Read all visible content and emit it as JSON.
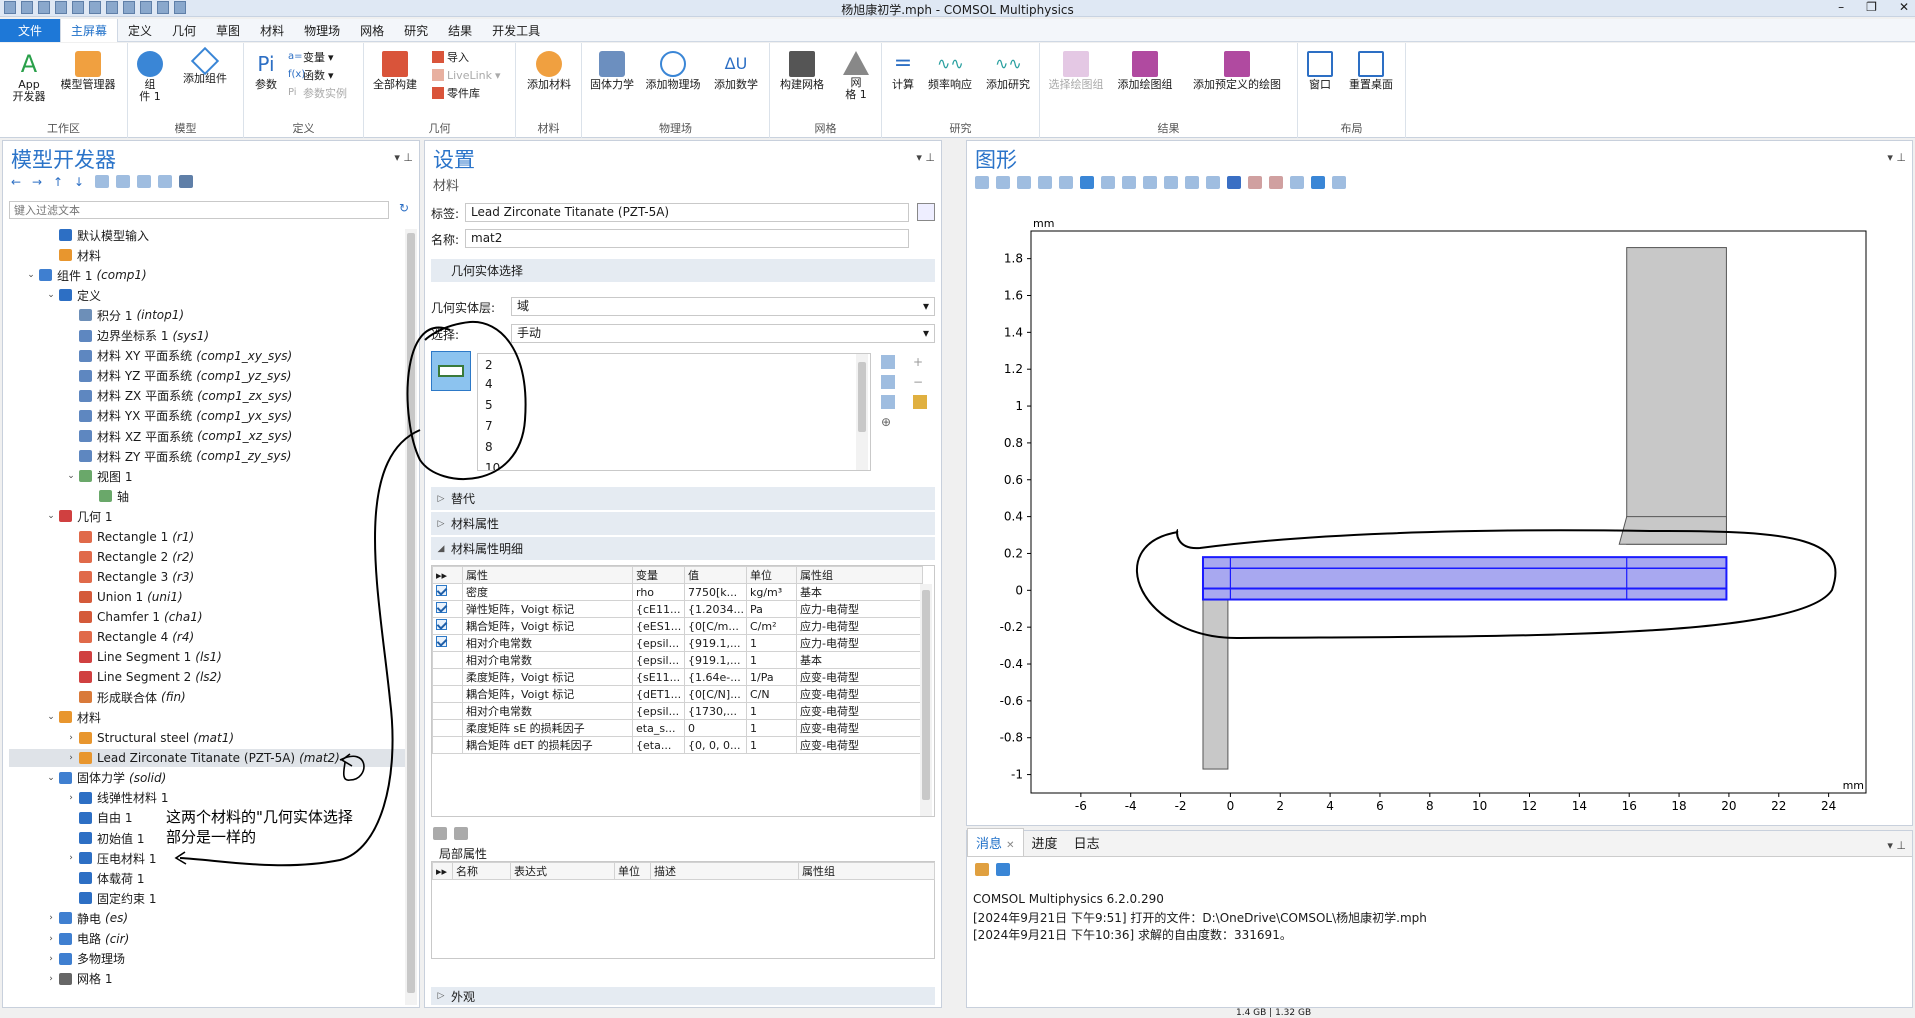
{
  "window": {
    "title": "杨旭康初学.mph - COMSOL Multiphysics"
  },
  "tabs": [
    "文件",
    "主屏幕",
    "定义",
    "几何",
    "草图",
    "材料",
    "物理场",
    "网格",
    "研究",
    "结果",
    "开发工具"
  ],
  "ribbon": {
    "workarea": {
      "label": "工作区",
      "app_line1": "App",
      "app_line2": "开发器",
      "model_mgr": "模型管理器"
    },
    "model": {
      "label": "模型",
      "comp_line1": "组",
      "comp_line2": "件 1",
      "add_comp": "添加组件"
    },
    "defs": {
      "label": "定义",
      "params": "参数",
      "vars": "变量",
      "funcs": "函数",
      "param_inst": "参数实例"
    },
    "geom": {
      "label": "几何",
      "build_all": "全部构建",
      "import": "导入",
      "livelink": "LiveLink",
      "parts": "零件库"
    },
    "mat": {
      "label": "材料",
      "add_mat": "添加材料"
    },
    "phys": {
      "label": "物理场",
      "solid": "固体力学",
      "add_phys": "添加物理场",
      "add_math": "添加数学"
    },
    "mesh": {
      "label": "网格",
      "build_mesh": "构建网格",
      "mesh1_line1": "网",
      "mesh1_line2": "格 1"
    },
    "study": {
      "label": "研究",
      "compute": "计算",
      "freq": "频率响应",
      "add_study": "添加研究"
    },
    "results": {
      "label": "结果",
      "select_plot": "选择绘图组",
      "add_plot": "添加绘图组",
      "add_predef": "添加预定义的绘图"
    },
    "layout": {
      "label": "布局",
      "window": "窗口",
      "reset": "重置桌面"
    }
  },
  "model_builder": {
    "title": "模型开发器",
    "filter_placeholder": "键入过滤文本",
    "nodes": [
      {
        "label": "默认模型输入",
        "tag": "",
        "arrow": "",
        "color": "#2d6fc4"
      },
      {
        "label": "材料",
        "tag": "",
        "arrow": "",
        "color": "#e8962e"
      },
      {
        "label": "组件 1",
        "tag": "(comp1)",
        "arrow": "⌄",
        "color": "#3f7fd0"
      },
      {
        "label": "定义",
        "tag": "",
        "arrow": "⌄",
        "color": "#2d6fc4"
      },
      {
        "label": "积分 1",
        "tag": "(intop1)",
        "arrow": "",
        "color": "#6d8fb8"
      },
      {
        "label": "边界坐标系 1",
        "tag": "(sys1)",
        "arrow": "",
        "color": "#5e87c0"
      },
      {
        "label": "材料 XY 平面系统",
        "tag": "(comp1_xy_sys)",
        "arrow": "",
        "color": "#5e87c0"
      },
      {
        "label": "材料 YZ 平面系统",
        "tag": "(comp1_yz_sys)",
        "arrow": "",
        "color": "#5e87c0"
      },
      {
        "label": "材料 ZX 平面系统",
        "tag": "(comp1_zx_sys)",
        "arrow": "",
        "color": "#5e87c0"
      },
      {
        "label": "材料 YX 平面系统",
        "tag": "(comp1_yx_sys)",
        "arrow": "",
        "color": "#5e87c0"
      },
      {
        "label": "材料 XZ 平面系统",
        "tag": "(comp1_xz_sys)",
        "arrow": "",
        "color": "#5e87c0"
      },
      {
        "label": "材料 ZY 平面系统",
        "tag": "(comp1_zy_sys)",
        "arrow": "",
        "color": "#5e87c0"
      },
      {
        "label": "视图 1",
        "tag": "",
        "arrow": "⌄",
        "color": "#6aa86a"
      },
      {
        "label": "轴",
        "tag": "",
        "arrow": "",
        "color": "#6aa86a"
      },
      {
        "label": "几何 1",
        "tag": "",
        "arrow": "⌄",
        "color": "#d04040"
      },
      {
        "label": "Rectangle 1",
        "tag": "(r1)",
        "arrow": "",
        "color": "#e06a4a"
      },
      {
        "label": "Rectangle 2",
        "tag": "(r2)",
        "arrow": "",
        "color": "#e06a4a"
      },
      {
        "label": "Rectangle 3",
        "tag": "(r3)",
        "arrow": "",
        "color": "#e06a4a"
      },
      {
        "label": "Union 1",
        "tag": "(uni1)",
        "arrow": "",
        "color": "#d45a3a"
      },
      {
        "label": "Chamfer 1",
        "tag": "(cha1)",
        "arrow": "",
        "color": "#d45a3a"
      },
      {
        "label": "Rectangle 4",
        "tag": "(r4)",
        "arrow": "",
        "color": "#e06a4a"
      },
      {
        "label": "Line Segment 1",
        "tag": "(ls1)",
        "arrow": "",
        "color": "#d04040"
      },
      {
        "label": "Line Segment 2",
        "tag": "(ls2)",
        "arrow": "",
        "color": "#d04040"
      },
      {
        "label": "形成联合体",
        "tag": "(fin)",
        "arrow": "",
        "color": "#d97a3a"
      },
      {
        "label": "材料",
        "tag": "",
        "arrow": "⌄",
        "color": "#e8962e"
      },
      {
        "label": "Structural steel",
        "tag": "(mat1)",
        "arrow": "›",
        "color": "#e8962e"
      },
      {
        "label": "Lead Zirconate Titanate (PZT-5A)",
        "tag": "(mat2)",
        "arrow": "›",
        "color": "#e8962e"
      },
      {
        "label": "固体力学",
        "tag": "(solid)",
        "arrow": "⌄",
        "color": "#3f7fd0"
      },
      {
        "label": "线弹性材料 1",
        "tag": "",
        "arrow": "›",
        "color": "#2d6fc4"
      },
      {
        "label": "自由 1",
        "tag": "",
        "arrow": "",
        "color": "#2d6fc4"
      },
      {
        "label": "初始值 1",
        "tag": "",
        "arrow": "",
        "color": "#2d6fc4"
      },
      {
        "label": "压电材料 1",
        "tag": "",
        "arrow": "›",
        "color": "#2d6fc4"
      },
      {
        "label": "体载荷 1",
        "tag": "",
        "arrow": "",
        "color": "#2d6fc4"
      },
      {
        "label": "固定约束 1",
        "tag": "",
        "arrow": "",
        "color": "#2d6fc4"
      },
      {
        "label": "静电",
        "tag": "(es)",
        "arrow": "›",
        "color": "#3f7fd0"
      },
      {
        "label": "电路",
        "tag": "(cir)",
        "arrow": "›",
        "color": "#3f7fd0"
      },
      {
        "label": "多物理场",
        "tag": "",
        "arrow": "›",
        "color": "#3f7fd0"
      },
      {
        "label": "网格 1",
        "tag": "",
        "arrow": "›",
        "color": "#666666"
      }
    ]
  },
  "settings": {
    "title": "设置",
    "subtitle": "材料",
    "label_lbl": "标签:",
    "label_val": "Lead Zirconate Titanate (PZT-5A)",
    "name_lbl": "名称:",
    "name_val": "mat2",
    "geom_sel": "几何实体选择",
    "level_lbl": "几何实体层:",
    "level_val": "域",
    "sel_lbl": "选择:",
    "sel_val": "手动",
    "domains": [
      "2",
      "4",
      "5",
      "7",
      "8",
      "10"
    ],
    "override": "替代",
    "mat_props": "材料属性",
    "mat_detail": "材料属性明细",
    "table_headers": [
      "属性",
      "变量",
      "值",
      "单位",
      "属性组"
    ],
    "table_rows": [
      {
        "checked": true,
        "prop": "密度",
        "var": "rho",
        "val": "7750[k...",
        "unit": "kg/m³",
        "grp": "基本"
      },
      {
        "checked": true,
        "prop": "弹性矩阵，Voigt 标记",
        "var": "{cE11...",
        "val": "{1.2034...",
        "unit": "Pa",
        "grp": "应力-电荷型"
      },
      {
        "checked": true,
        "prop": "耦合矩阵，Voigt 标记",
        "var": "{eES1...",
        "val": "{0[C/m...",
        "unit": "C/m²",
        "grp": "应力-电荷型"
      },
      {
        "checked": true,
        "prop": "相对介电常数",
        "var": "{epsil...",
        "val": "{919.1,...",
        "unit": "1",
        "grp": "应力-电荷型"
      },
      {
        "checked": false,
        "prop": "相对介电常数",
        "var": "{epsil...",
        "val": "{919.1,...",
        "unit": "1",
        "grp": "基本"
      },
      {
        "checked": false,
        "prop": "柔度矩阵，Voigt 标记",
        "var": "{sE11...",
        "val": "{1.64e-...",
        "unit": "1/Pa",
        "grp": "应变-电荷型"
      },
      {
        "checked": false,
        "prop": "耦合矩阵，Voigt 标记",
        "var": "{dET1...",
        "val": "{0[C/N]...",
        "unit": "C/N",
        "grp": "应变-电荷型"
      },
      {
        "checked": false,
        "prop": "相对介电常数",
        "var": "{epsil...",
        "val": "{1730,...",
        "unit": "1",
        "grp": "应变-电荷型"
      },
      {
        "checked": false,
        "prop": "柔度矩阵 sE 的损耗因子",
        "var": "eta_s...",
        "val": "0",
        "unit": "1",
        "grp": "应变-电荷型"
      },
      {
        "checked": false,
        "prop": "耦合矩阵 dET 的损耗因子",
        "var": "{eta...",
        "val": "{0, 0, 0...",
        "unit": "1",
        "grp": "应变-电荷型"
      }
    ],
    "local_props": "局部属性",
    "local_headers": [
      "名称",
      "表达式",
      "单位",
      "描述",
      "属性组"
    ],
    "appearance": "外观"
  },
  "graphics": {
    "title": "图形",
    "unit": "mm",
    "x_ticks": [
      "-6",
      "-4",
      "-2",
      "0",
      "2",
      "4",
      "6",
      "8",
      "10",
      "12",
      "14",
      "16",
      "18",
      "20",
      "22",
      "24"
    ],
    "y_ticks": [
      "1.8",
      "1.6",
      "1.4",
      "1.2",
      "1",
      "0.8",
      "0.6",
      "0.4",
      "0.2",
      "0",
      "-0.2",
      "-0.4",
      "-0.6",
      "-0.8",
      "-1"
    ],
    "colors": {
      "gray_fill": "#c8c8c8",
      "selected_fill": "#a8a8f0",
      "selected_stroke": "#1a1aff"
    }
  },
  "messages": {
    "tabs": [
      "消息",
      "进度",
      "日志"
    ],
    "lines": [
      "COMSOL Multiphysics 6.2.0.290",
      "[2024年9月21日 下午9:51] 打开的文件：D:\\OneDrive\\COMSOL\\杨旭康初学.mph",
      "[2024年9月21日 下午10:36] 求解的自由度数：331691。"
    ]
  },
  "annotation": {
    "line1": "这两个材料的\"几何实体选择",
    "line2": "部分是一样的"
  },
  "status": {
    "memory": "1.4 GB | 1.32 GB"
  }
}
